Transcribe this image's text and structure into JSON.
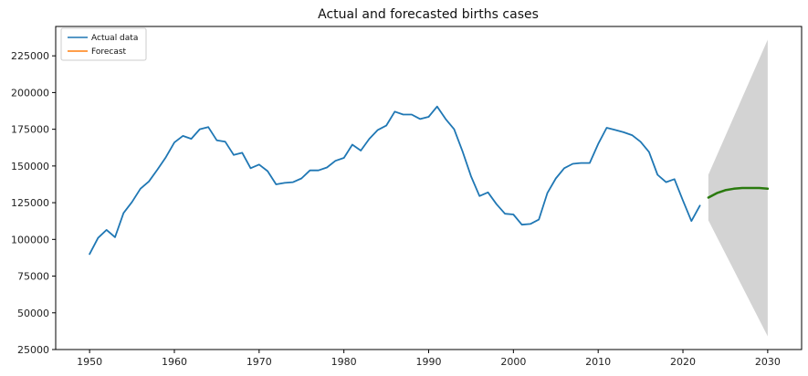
{
  "chart_data": {
    "type": "line",
    "title": "Actual and forecasted births cases",
    "xlabel": "",
    "ylabel": "",
    "xlim": [
      1946,
      2034
    ],
    "ylim": [
      25000,
      245000
    ],
    "xticks": [
      1950,
      1960,
      1970,
      1980,
      1990,
      2000,
      2010,
      2020,
      2030
    ],
    "yticks": [
      25000,
      50000,
      75000,
      100000,
      125000,
      150000,
      175000,
      200000,
      225000
    ],
    "grid": false,
    "legend": {
      "placement": "top-left"
    },
    "series": [
      {
        "name": "Actual data",
        "color": "#1f77b4",
        "x": [
          1950,
          1951,
          1952,
          1953,
          1954,
          1955,
          1956,
          1957,
          1958,
          1959,
          1960,
          1961,
          1962,
          1963,
          1964,
          1965,
          1966,
          1967,
          1968,
          1969,
          1970,
          1971,
          1972,
          1973,
          1974,
          1975,
          1976,
          1977,
          1978,
          1979,
          1980,
          1981,
          1982,
          1983,
          1984,
          1985,
          1986,
          1987,
          1988,
          1989,
          1990,
          1991,
          1992,
          1993,
          1994,
          1995,
          1996,
          1997,
          1998,
          1999,
          2000,
          2001,
          2002,
          2003,
          2004,
          2005,
          2006,
          2007,
          2008,
          2009,
          2010,
          2011,
          2012,
          2013,
          2014,
          2015,
          2016,
          2017,
          2018,
          2019,
          2020,
          2021,
          2022
        ],
        "values": [
          90000,
          101000,
          106500,
          101500,
          118000,
          125500,
          134500,
          139500,
          147500,
          156000,
          166000,
          170500,
          168500,
          175000,
          176500,
          167500,
          166500,
          157500,
          159000,
          148500,
          151000,
          146500,
          137500,
          138500,
          139000,
          141500,
          147000,
          147000,
          149000,
          153500,
          155500,
          164500,
          160500,
          168500,
          174500,
          177500,
          187000,
          185000,
          185000,
          182000,
          183500,
          190500,
          182000,
          175000,
          160000,
          143000,
          129500,
          132000,
          124000,
          117500,
          117000,
          110000,
          110500,
          113500,
          131500,
          141500,
          148500,
          151500,
          152000,
          152000,
          165000,
          176000,
          174500,
          173000,
          171000,
          166500,
          159500,
          144000,
          139000,
          141000,
          126500,
          112500,
          123000
        ]
      },
      {
        "name": "Forecast",
        "color": "#ff7f0e",
        "x": [
          2023,
          2024,
          2025,
          2026,
          2027,
          2028,
          2029,
          2030
        ],
        "values": [
          128500,
          131500,
          133500,
          134500,
          135000,
          135000,
          135000,
          134500
        ]
      }
    ],
    "forecast_line_color": "#2a7a0e",
    "confidence_interval": {
      "color": "#d3d3d3",
      "x": [
        2023,
        2030
      ],
      "upper": [
        144000,
        236000
      ],
      "lower": [
        113000,
        34000
      ]
    }
  }
}
